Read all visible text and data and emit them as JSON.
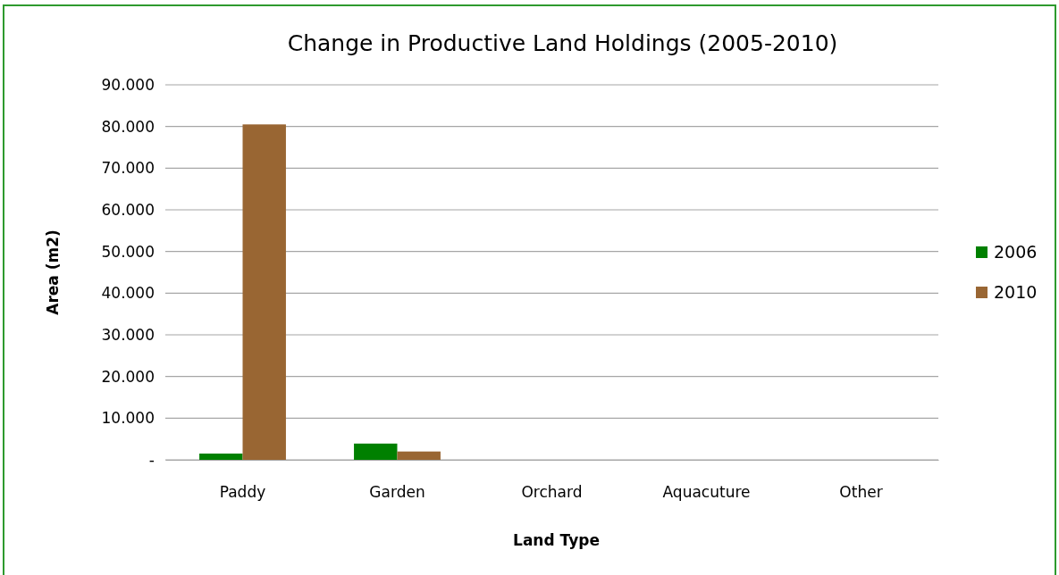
{
  "chart_data": {
    "type": "bar",
    "title": "Change in Productive Land Holdings (2005-2010)",
    "xlabel": "Land Type",
    "ylabel": "Area (m2)",
    "categories": [
      "Paddy",
      "Garden",
      "Orchard",
      "Aquacuture",
      "Other"
    ],
    "series": [
      {
        "name": "2006",
        "color": "#008000",
        "values": [
          1500,
          3900,
          0,
          0,
          0
        ]
      },
      {
        "name": "2010",
        "color": "#996633",
        "values": [
          80500,
          2000,
          0,
          0,
          0
        ]
      }
    ],
    "ylim": [
      0,
      90000
    ],
    "yticks": [
      {
        "value": 0,
        "label": "-"
      },
      {
        "value": 10000,
        "label": "10.000"
      },
      {
        "value": 20000,
        "label": "20.000"
      },
      {
        "value": 30000,
        "label": "30.000"
      },
      {
        "value": 40000,
        "label": "40.000"
      },
      {
        "value": 50000,
        "label": "50.000"
      },
      {
        "value": 60000,
        "label": "60.000"
      },
      {
        "value": 70000,
        "label": "70.000"
      },
      {
        "value": 80000,
        "label": "80.000"
      },
      {
        "value": 90000,
        "label": "90.000"
      }
    ],
    "grid": "y",
    "legend": "right"
  }
}
